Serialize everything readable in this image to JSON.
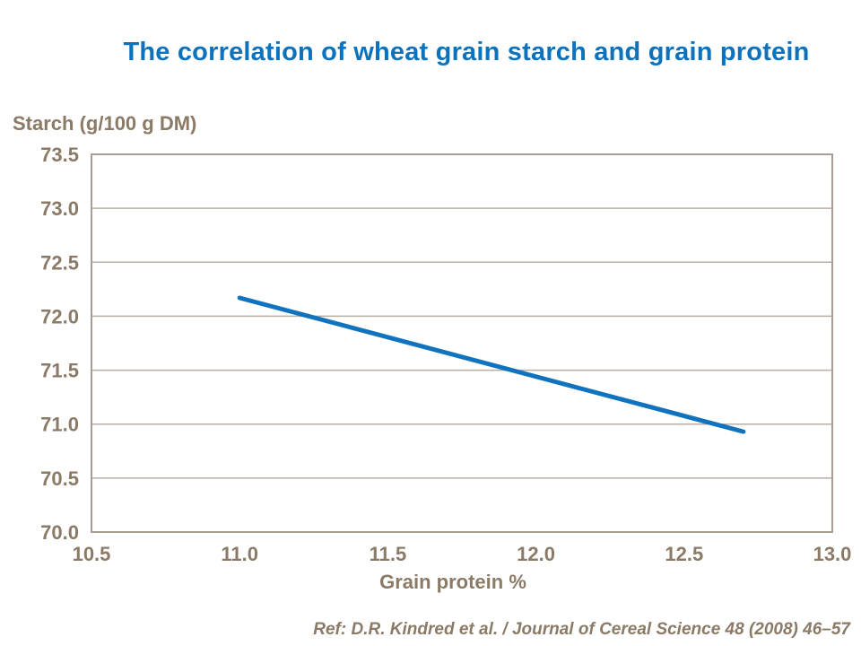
{
  "page": {
    "title": "The correlation of wheat grain starch and grain protein",
    "reference": "Ref: D.R. Kindred et al. / Journal of Cereal Science 48 (2008) 46–57"
  },
  "colors": {
    "title_blue": "#0d72bc",
    "line_blue": "#1173bd",
    "axis_text_brown": "#8a7a66",
    "plot_border_tan": "#a89d92",
    "gridline_tan": "#b6ada3",
    "background": "#ffffff"
  },
  "chart_data": {
    "type": "line",
    "title": "The correlation of wheat grain starch and grain protein",
    "xlabel": "Grain protein %",
    "ylabel": "Starch (g/100 g DM)",
    "xlim": [
      10.5,
      13.0
    ],
    "ylim": [
      70.0,
      73.5
    ],
    "xticks": [
      "10.5",
      "11.0",
      "11.5",
      "12.0",
      "12.5",
      "13.0"
    ],
    "yticks": [
      "70.0",
      "70.5",
      "71.0",
      "71.5",
      "72.0",
      "72.5",
      "73.0",
      "73.5"
    ],
    "grid": "horizontal-only",
    "legend": "none",
    "series": [
      {
        "name": "starch-vs-protein-trend",
        "x": [
          11.0,
          12.7
        ],
        "y": [
          72.17,
          70.93
        ]
      }
    ]
  }
}
